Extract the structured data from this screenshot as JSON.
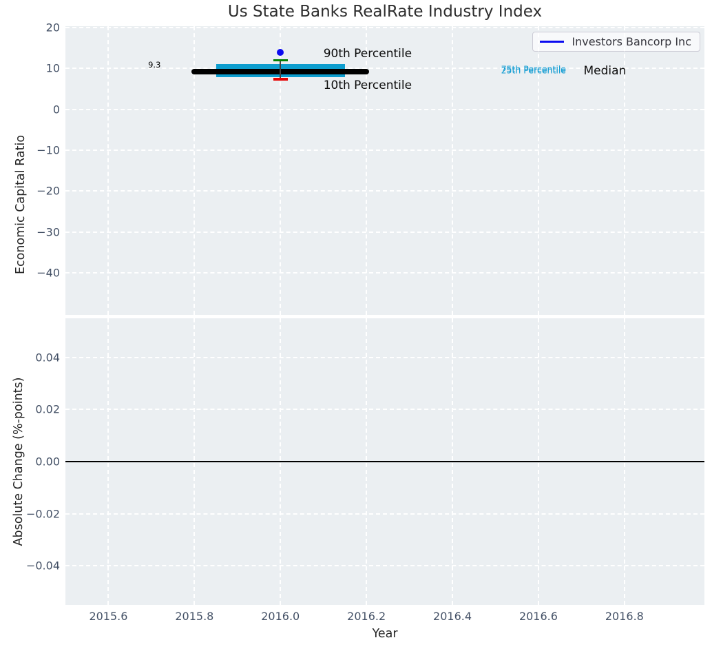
{
  "figure": {
    "title": "Us State Banks RealRate Industry Index",
    "xlabel": "Year",
    "legend": {
      "label": "Investors Bancorp Inc",
      "line_color": "#0b0bf0",
      "position": "upper right"
    }
  },
  "colors": {
    "plot_background": "#ebeff2",
    "grid": "#ffffff",
    "tick_label": "#445166",
    "iqr_bar": "#0d9dce",
    "median_line": "#000000",
    "p90_cap": "#008000",
    "p10_cap": "#e60000",
    "whisker": "#444444",
    "company_point": "#0b0bf0",
    "zero_line": "#000000",
    "cyan_text": "#149dd3"
  },
  "chart_data": [
    {
      "panel": "top",
      "type": "boxplot",
      "title": "Us State Banks RealRate Industry Index",
      "ylabel": "Economic Capital Ratio",
      "grid": true,
      "legend_position": "upper right",
      "xlim": [
        2015.5,
        2016.986
      ],
      "ylim": [
        -50.3,
        20.35
      ],
      "xticks": {
        "values": [
          2015.6,
          2015.8,
          2016.0,
          2016.2,
          2016.4,
          2016.6,
          2016.8
        ],
        "labels": [
          "2015.6",
          "2015.8",
          "2016.0",
          "2016.2",
          "2016.4",
          "2016.6",
          "2016.8"
        ]
      },
      "yticks": {
        "values": [
          20,
          10,
          0,
          -10,
          -20,
          -30,
          -40
        ],
        "labels": [
          "20",
          "10",
          "0",
          "−10",
          "−20",
          "−30",
          "−40"
        ]
      },
      "box": {
        "x": 2016.0,
        "p10": 7.4,
        "p25": 7.9,
        "median": 9.3,
        "p75": 11.0,
        "p90": 12.0,
        "median_span": [
          2015.8,
          2016.2
        ],
        "iqr_span": [
          2015.85,
          2016.15
        ],
        "median_label": "9.3"
      },
      "company_series": {
        "name": "Investors Bancorp Inc",
        "x": [
          2016.0
        ],
        "y": [
          14.0
        ]
      },
      "annotations": [
        {
          "text": "9.3",
          "x": 2015.707,
          "y": 10.9,
          "size": 11.5,
          "color": "#000000",
          "align": "center"
        },
        {
          "text": "90th Percentile",
          "x": 2016.1,
          "y": 13.6,
          "size": 17,
          "color": "#0d0d0d",
          "align": "left"
        },
        {
          "text": "10th Percentile",
          "x": 2016.1,
          "y": 5.9,
          "size": 17,
          "color": "#0d0d0d",
          "align": "left"
        },
        {
          "text": "75th Percentile",
          "x": 2016.513,
          "y": 9.85,
          "size": 12.5,
          "color": "#149dd3",
          "align": "left"
        },
        {
          "text": "25th Percentile",
          "x": 2016.513,
          "y": 9.62,
          "size": 12.5,
          "color": "#149dd3",
          "align": "left"
        },
        {
          "text": "Median",
          "x": 2016.705,
          "y": 9.4,
          "size": 17,
          "color": "#0d0d0d",
          "align": "left"
        }
      ]
    },
    {
      "panel": "bottom",
      "type": "line",
      "ylabel": "Absolute Change (%-points)",
      "xlabel": "Year",
      "grid": true,
      "xlim": [
        2015.5,
        2016.986
      ],
      "ylim": [
        -0.055,
        0.055
      ],
      "xticks": {
        "values": [
          2015.6,
          2015.8,
          2016.0,
          2016.2,
          2016.4,
          2016.6,
          2016.8
        ],
        "labels": [
          "2015.6",
          "2015.8",
          "2016.0",
          "2016.2",
          "2016.4",
          "2016.6",
          "2016.8"
        ]
      },
      "yticks": {
        "values": [
          0.04,
          0.02,
          0,
          -0.02,
          -0.04
        ],
        "labels": [
          "0.04",
          "0.02",
          "0.00",
          "−0.02",
          "−0.04"
        ]
      },
      "series": [],
      "zero_line": 0.0
    }
  ]
}
